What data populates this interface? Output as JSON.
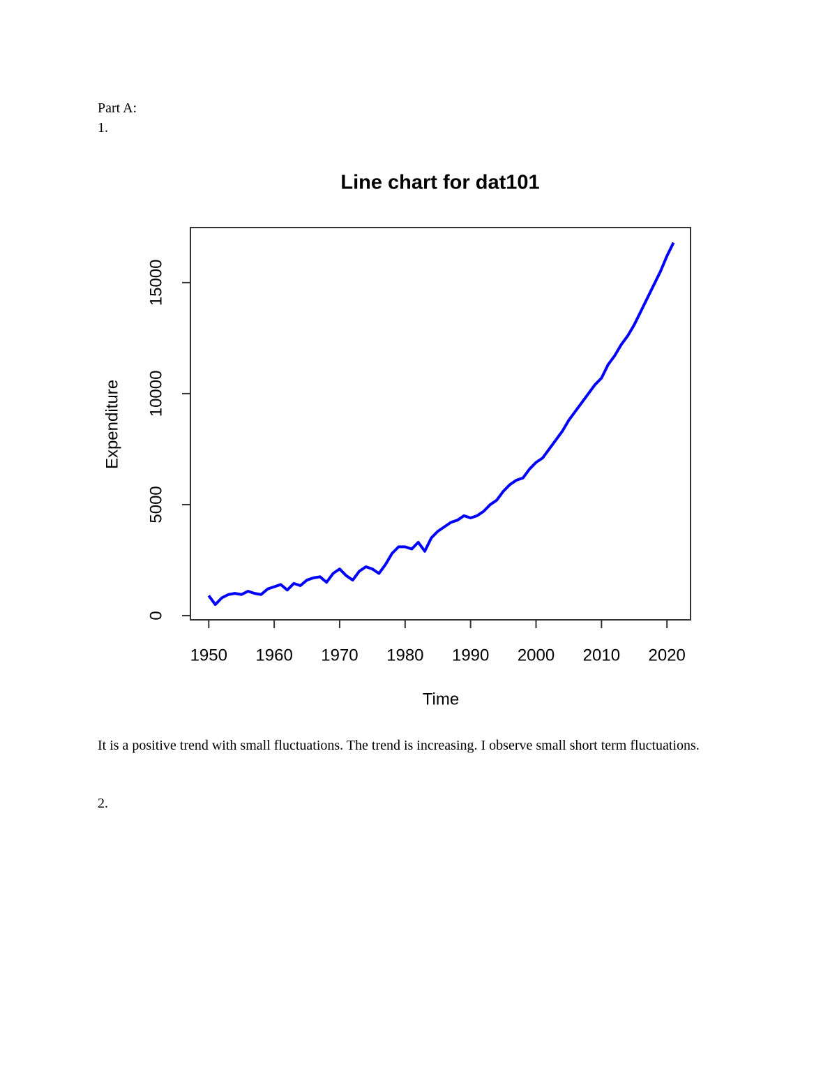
{
  "document": {
    "heading": "Part A:",
    "item1": "1.",
    "paragraph": "It is a positive trend with small fluctuations. The trend is increasing. I observe small short term fluctuations.",
    "item2": "2."
  },
  "chart_data": {
    "type": "line",
    "title": "Line chart for dat101",
    "xlabel": "Time",
    "ylabel": "Expenditure",
    "color": "#0000ff",
    "x": [
      1950,
      1951,
      1952,
      1953,
      1954,
      1955,
      1956,
      1957,
      1958,
      1959,
      1960,
      1961,
      1962,
      1963,
      1964,
      1965,
      1966,
      1967,
      1968,
      1969,
      1970,
      1971,
      1972,
      1973,
      1974,
      1975,
      1976,
      1977,
      1978,
      1979,
      1980,
      1981,
      1982,
      1983,
      1984,
      1985,
      1986,
      1987,
      1988,
      1989,
      1990,
      1991,
      1992,
      1993,
      1994,
      1995,
      1996,
      1997,
      1998,
      1999,
      2000,
      2001,
      2002,
      2003,
      2004,
      2005,
      2006,
      2007,
      2008,
      2009,
      2010,
      2011,
      2012,
      2013,
      2014,
      2015,
      2016,
      2017,
      2018,
      2019,
      2020,
      2021
    ],
    "values": [
      900,
      500,
      800,
      950,
      1000,
      950,
      1100,
      1000,
      950,
      1200,
      1300,
      1400,
      1150,
      1450,
      1350,
      1600,
      1700,
      1750,
      1500,
      1900,
      2100,
      1800,
      1600,
      2000,
      2200,
      2100,
      1900,
      2300,
      2800,
      3100,
      3100,
      3000,
      3300,
      2900,
      3500,
      3800,
      4000,
      4200,
      4300,
      4500,
      4400,
      4500,
      4700,
      5000,
      5200,
      5600,
      5900,
      6100,
      6200,
      6600,
      6900,
      7100,
      7500,
      7900,
      8300,
      8800,
      9200,
      9600,
      10000,
      10400,
      10700,
      11300,
      11700,
      12200,
      12600,
      13100,
      13700,
      14300,
      14900,
      15500,
      16200,
      16800
    ],
    "xlim": [
      1947.2,
      2023.6
    ],
    "ylim": [
      -190,
      17480
    ],
    "xticks": [
      1950,
      1960,
      1970,
      1980,
      1990,
      2000,
      2010,
      2020
    ],
    "yticks": [
      0,
      5000,
      10000,
      15000
    ]
  }
}
